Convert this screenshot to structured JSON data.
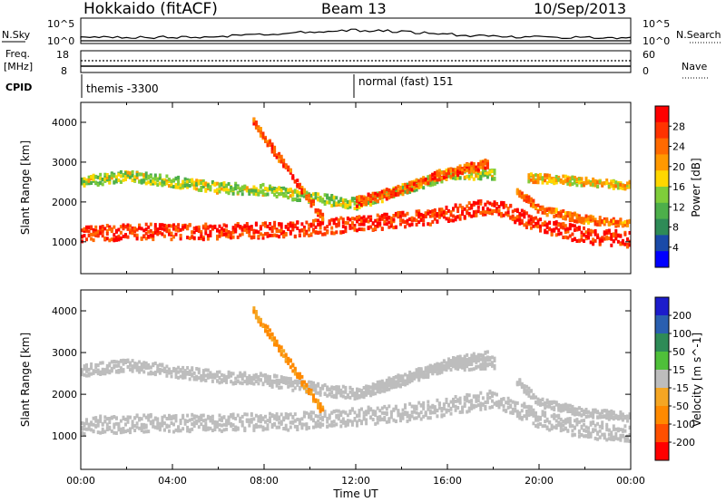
{
  "header": {
    "site": "Hokkaido (fitACF)",
    "beam": "Beam 13",
    "date": "10/Sep/2013"
  },
  "strip_nsky": {
    "left_label": "N.Sky",
    "left_ticks": [
      "10^5",
      "10^0"
    ],
    "right_label": "N.Search",
    "right_ticks": [
      "10^5",
      "10^0"
    ]
  },
  "strip_freq": {
    "left_label_1": "Freq.",
    "left_label_2": "[MHz]",
    "left_ticks": [
      "18",
      "8"
    ],
    "right_label": "Nave",
    "right_ticks": [
      "60",
      "0"
    ]
  },
  "strip_cpid": {
    "label": "CPID",
    "mode_1": "themis -3300",
    "mode_2": "normal (fast) 151"
  },
  "colors": {
    "power": [
      "#0000ff",
      "#1a4aa8",
      "#2e8b57",
      "#4daf4a",
      "#7fcd3a",
      "#ffd700",
      "#ff9900",
      "#ff6a00",
      "#ff3300",
      "#ff0000"
    ],
    "velocity": [
      "#1c1ccc",
      "#2a5fb0",
      "#2e8b57",
      "#4fc03a",
      "#bdbdbd",
      "#f5a623",
      "#ff8a00",
      "#ff5000",
      "#ff0000"
    ]
  },
  "chart_data": [
    {
      "type": "heatmap",
      "panel": "power",
      "title": "",
      "ylabel": "Slant Range [km]",
      "yticks": [
        "1000",
        "2000",
        "3000",
        "4000"
      ],
      "ylim": [
        200,
        4500
      ],
      "xlim": [
        0,
        24
      ],
      "colorbar_label": "Power [dB]",
      "colorbar_ticks": [
        "4",
        "8",
        "12",
        "16",
        "20",
        "24",
        "28"
      ],
      "colorbar_range": [
        0,
        30
      ],
      "bands": [
        {
          "x": [
            0,
            3,
            6,
            9,
            12,
            15,
            18,
            20,
            22,
            24
          ],
          "y": [
            1200,
            1250,
            1250,
            1300,
            1450,
            1600,
            1900,
            1400,
            1150,
            1050
          ],
          "width": 380,
          "power": 26
        },
        {
          "x": [
            0,
            2,
            4,
            6,
            8,
            10,
            12,
            14,
            16,
            18
          ],
          "y": [
            2500,
            2650,
            2500,
            2350,
            2300,
            2100,
            1950,
            2300,
            2700,
            2700
          ],
          "width": 260,
          "power": 14
        },
        {
          "x": [
            12,
            13,
            14,
            15,
            16,
            17,
            17.8
          ],
          "y": [
            2000,
            2150,
            2300,
            2550,
            2750,
            2850,
            2950
          ],
          "width": 240,
          "power": 24
        },
        {
          "x": [
            7.5,
            8.5,
            9.5,
            10.5
          ],
          "y": [
            4000,
            3200,
            2400,
            1600
          ],
          "width": 200,
          "power": 24
        },
        {
          "x": [
            19,
            20,
            22,
            24
          ],
          "y": [
            2300,
            1800,
            1550,
            1450
          ],
          "width": 200,
          "power": 22
        },
        {
          "x": [
            19.5,
            21,
            23,
            24
          ],
          "y": [
            2600,
            2550,
            2450,
            2400
          ],
          "width": 200,
          "power": 18
        }
      ]
    },
    {
      "type": "heatmap",
      "panel": "velocity",
      "title": "",
      "ylabel": "Slant Range [km]",
      "yticks": [
        "1000",
        "2000",
        "3000",
        "4000"
      ],
      "ylim": [
        200,
        4500
      ],
      "xlim": [
        0,
        24
      ],
      "xticks": [
        "00:00",
        "04:00",
        "08:00",
        "12:00",
        "16:00",
        "20:00",
        "00:00"
      ],
      "xlabel": "Time UT",
      "colorbar_label": "Velocity [m s^-1]",
      "colorbar_ticks": [
        "200",
        "100",
        "50",
        "15",
        "-15",
        "-50",
        "-100",
        "-200"
      ],
      "colorbar_range": [
        -250,
        250
      ],
      "bands": [
        {
          "x": [
            0,
            3,
            6,
            9,
            12,
            15,
            18,
            20,
            22,
            24
          ],
          "y": [
            1250,
            1300,
            1300,
            1350,
            1450,
            1600,
            1900,
            1400,
            1150,
            1050
          ],
          "width": 420,
          "velocity": 0
        },
        {
          "x": [
            0,
            2,
            4,
            6,
            8,
            10,
            12,
            14,
            16,
            18
          ],
          "y": [
            2550,
            2700,
            2550,
            2400,
            2350,
            2150,
            2000,
            2350,
            2700,
            2750
          ],
          "width": 280,
          "velocity": 0
        },
        {
          "x": [
            7.5,
            8.5,
            9.5,
            10.5
          ],
          "y": [
            4000,
            3200,
            2400,
            1600
          ],
          "width": 200,
          "velocity": -60
        },
        {
          "x": [
            12,
            14,
            16,
            17.8
          ],
          "y": [
            2000,
            2300,
            2750,
            2950
          ],
          "width": 200,
          "velocity": 0
        },
        {
          "x": [
            19,
            20,
            22,
            24
          ],
          "y": [
            2300,
            1800,
            1550,
            1450
          ],
          "width": 200,
          "velocity": 0
        }
      ]
    }
  ]
}
